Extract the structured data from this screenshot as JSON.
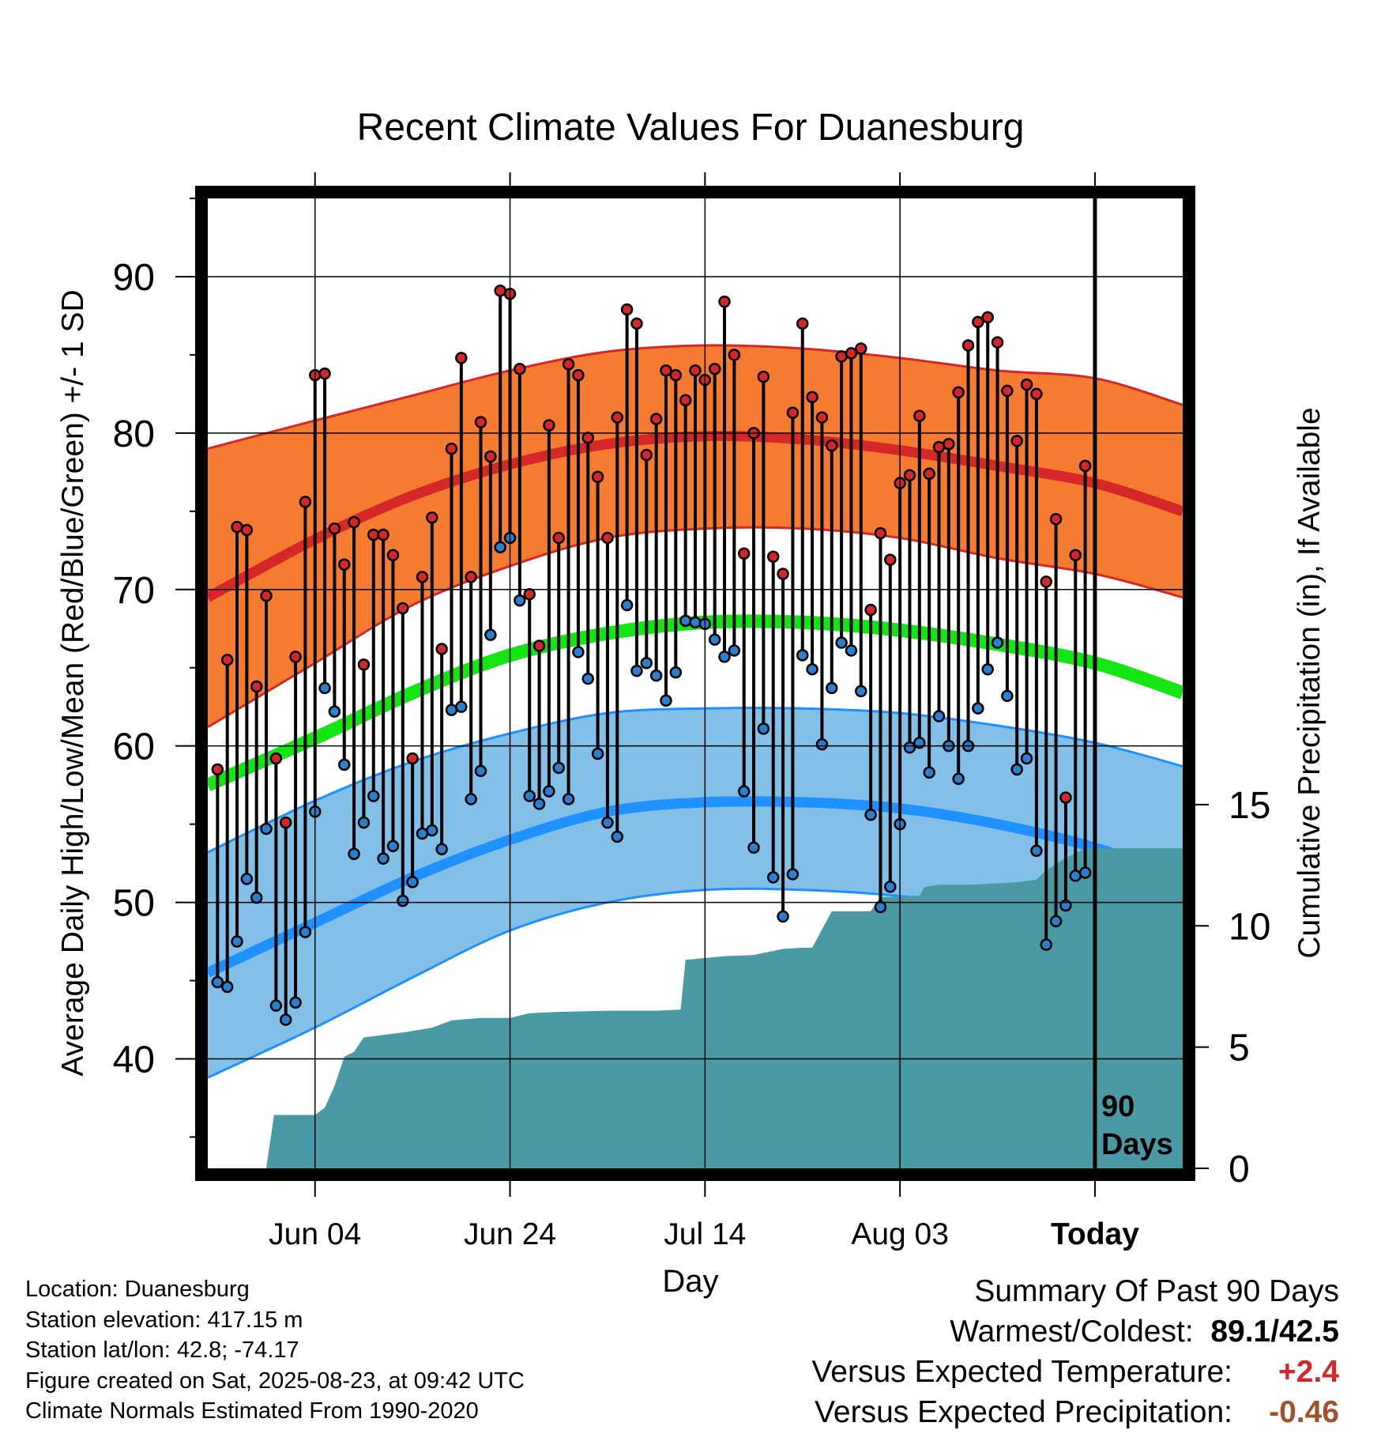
{
  "title": "Recent Climate Values For Duanesburg",
  "chart_data": {
    "type": "line",
    "y_axis": {
      "label": "Average Daily High/Low/Mean (Red/Blue/Green) +/- 1 SD",
      "range": [
        33,
        95
      ],
      "ticks": [
        40,
        50,
        60,
        70,
        80,
        90
      ]
    },
    "y2_axis": {
      "label": "Cumulative Precipitation (in), If Available",
      "range": [
        0,
        40
      ],
      "ticks": [
        0,
        5,
        10,
        15
      ]
    },
    "x_axis": {
      "label": "Day",
      "range_days_from_today": [
        -91,
        9
      ],
      "ticks": [
        {
          "day": -80,
          "label": "Jun 04"
        },
        {
          "day": -60,
          "label": "Jun 24"
        },
        {
          "day": -40,
          "label": "Jul 14"
        },
        {
          "day": -20,
          "label": "Aug 03"
        },
        {
          "day": 0,
          "label": "Today"
        }
      ]
    },
    "today_marker": {
      "day": 0,
      "label_lines": [
        "90",
        "Days"
      ]
    },
    "normals": {
      "days": [
        -91,
        -80,
        -70,
        -60,
        -50,
        -40,
        -30,
        -20,
        -10,
        0,
        9
      ],
      "high_mean": [
        69.5,
        73.2,
        76.0,
        78.0,
        79.3,
        79.8,
        79.6,
        78.9,
        77.9,
        76.8,
        75.0
      ],
      "high_upper": [
        79.0,
        80.8,
        82.4,
        84.0,
        85.2,
        85.6,
        85.4,
        84.8,
        84.0,
        83.5,
        81.8
      ],
      "high_lower": [
        61.2,
        65.3,
        69.0,
        71.5,
        73.3,
        73.9,
        73.9,
        73.3,
        72.0,
        71.0,
        69.5
      ],
      "mean": [
        57.5,
        60.5,
        63.4,
        65.8,
        67.2,
        67.9,
        67.9,
        67.4,
        66.5,
        65.3,
        63.4
      ],
      "low_mean": [
        45.5,
        48.7,
        51.6,
        54.0,
        55.8,
        56.4,
        56.4,
        56.0,
        55.0,
        53.5,
        51.5
      ],
      "low_upper": [
        53.2,
        56.5,
        59.0,
        60.8,
        62.1,
        62.4,
        62.4,
        62.1,
        61.3,
        60.2,
        58.7
      ],
      "low_lower": [
        38.8,
        42.0,
        45.2,
        48.2,
        50.0,
        50.8,
        50.8,
        50.4,
        49.5,
        48.2,
        47.0
      ]
    },
    "daily": {
      "start_day": -90,
      "highs": [
        58.5,
        65.5,
        74,
        73.8,
        63.8,
        69.6,
        59.2,
        55.1,
        65.7,
        75.6,
        83.7,
        83.8,
        73.9,
        71.6,
        74.3,
        65.2,
        73.5,
        73.5,
        72.2,
        68.8,
        59.2,
        70.8,
        74.6,
        66.2,
        79,
        84.8,
        70.8,
        80.7,
        78.5,
        89.1,
        88.9,
        84.1,
        69.7,
        66.4,
        80.5,
        73.3,
        84.4,
        83.7,
        79.7,
        77.2,
        73.3,
        81,
        87.9,
        87,
        78.6,
        80.9,
        84,
        83.7,
        82.1,
        84,
        83.4,
        84.1,
        88.4,
        85,
        72.3,
        80,
        83.6,
        72.1,
        71,
        81.3,
        87,
        82.3,
        81,
        79.2,
        84.9,
        85.1,
        85.4,
        68.7,
        73.6,
        71.9,
        76.8,
        77.3,
        81.1,
        77.4,
        79.1,
        79.3,
        82.6,
        85.6,
        87.1,
        87.4,
        85.8,
        82.7,
        79.5,
        83.1,
        82.5,
        70.5,
        74.5,
        56.7,
        72.2,
        77.9
      ],
      "lows": [
        44.9,
        44.6,
        47.5,
        51.5,
        50.3,
        54.7,
        43.4,
        42.5,
        43.6,
        48.1,
        55.8,
        63.7,
        62.2,
        58.8,
        53.1,
        55.1,
        56.8,
        52.8,
        53.6,
        50.1,
        51.3,
        54.4,
        54.6,
        53.4,
        62.3,
        62.5,
        56.6,
        58.4,
        67.1,
        72.7,
        73.3,
        69.3,
        56.8,
        56.3,
        57.1,
        58.6,
        56.6,
        66,
        64.3,
        59.5,
        55.1,
        54.2,
        69,
        64.8,
        65.3,
        64.5,
        62.9,
        64.7,
        68,
        67.9,
        67.8,
        66.8,
        65.7,
        66.1,
        57.1,
        53.5,
        61.1,
        51.6,
        49.1,
        51.8,
        65.8,
        64.9,
        60.1,
        63.7,
        66.6,
        66.1,
        63.5,
        55.6,
        49.7,
        51,
        55,
        59.9,
        60.2,
        58.3,
        61.9,
        60,
        57.9,
        60,
        62.4,
        64.9,
        66.6,
        63.2,
        58.5,
        59.2,
        53.3,
        47.3,
        48.8,
        49.8,
        51.7,
        51.9
      ]
    },
    "precip_cumulative": {
      "days": [
        -90,
        -85,
        -84.2,
        -80,
        -79,
        -78,
        -77,
        -76,
        -75,
        -73,
        -71,
        -68,
        -66,
        -63,
        -60,
        -58,
        -55,
        -50,
        -45,
        -42.5,
        -42,
        -38,
        -35,
        -32,
        -30,
        -29,
        -27,
        -23,
        -22,
        -20,
        -18,
        -17.5,
        -16,
        -12.5,
        -8,
        -6,
        -5,
        -3,
        -1,
        0,
        9
      ],
      "values": [
        0,
        0,
        2.2,
        2.2,
        2.5,
        3.4,
        4.6,
        4.8,
        5.4,
        5.5,
        5.6,
        5.8,
        6.1,
        6.2,
        6.2,
        6.4,
        6.45,
        6.5,
        6.5,
        6.55,
        8.6,
        8.75,
        8.8,
        9.05,
        9.1,
        9.1,
        10.6,
        10.6,
        11.2,
        11.2,
        11.25,
        11.6,
        11.7,
        11.7,
        11.8,
        11.9,
        12.3,
        12.8,
        13.2,
        13.2,
        13.2
      ]
    }
  },
  "footer": {
    "location": "Location: Duanesburg",
    "elevation": "Station elevation: 417.15 m",
    "latlon": "Station lat/lon: 42.8; -74.17",
    "created": "Figure created on Sat, 2025-08-23, at 09:42 UTC",
    "normals": "Climate Normals Estimated From 1990-2020"
  },
  "summary": {
    "heading": "Summary Of Past 90 Days",
    "warmest_coldest_label": "Warmest/Coldest:",
    "warmest_coldest_value": "89.1/42.5",
    "temp_label": "Versus Expected Temperature:",
    "temp_value": "+2.4",
    "precip_label": "Versus Expected Precipitation:",
    "precip_value": "-0.46"
  },
  "colors": {
    "high_band": "#f47b30",
    "high_line": "#d62728",
    "mean_line": "#14e614",
    "low_band": "#82c0e8",
    "low_line": "#1e90ff",
    "precip_fill": "#4a9aa5",
    "high_marker": "#d62728",
    "low_marker": "#2a7fcf"
  }
}
